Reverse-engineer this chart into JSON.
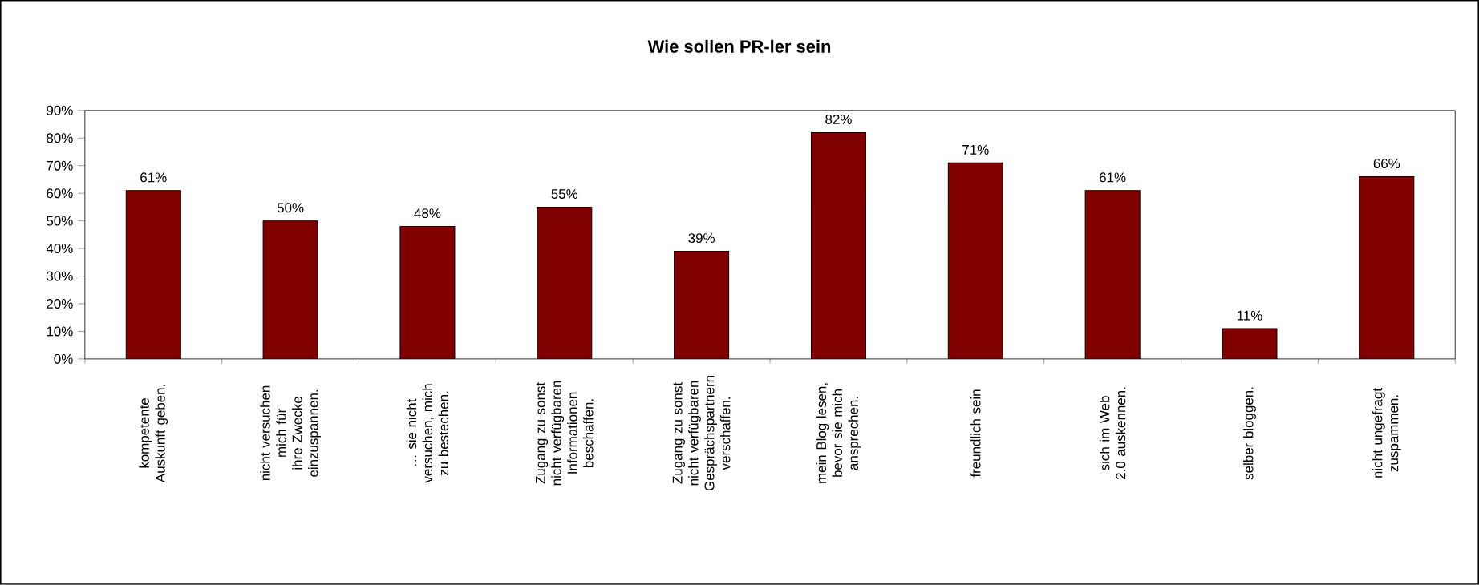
{
  "chart_data": {
    "type": "bar",
    "title": "Wie sollen PR-ler sein",
    "categories": [
      "kompetente Auskunft geben.",
      "nicht versuchen mich für ihre Zwecke einzuspannen.",
      "… sie nicht versuchen, mich zu bestechen.",
      "Zugang zu sonst nicht verfügbaren Informationen beschaffen.",
      "Zugang zu sonst nicht verfügbaren Gesprächspartnern verschaffen.",
      "mein Blog lesen, bevor sie mich ansprechen.",
      "freundlich sein",
      "sich im Web 2.0 auskennen.",
      "selber bloggen.",
      "nicht ungefragt zuspammen."
    ],
    "values": [
      61,
      50,
      48,
      55,
      39,
      82,
      71,
      61,
      11,
      66
    ],
    "value_labels": [
      "61%",
      "50%",
      "48%",
      "55%",
      "39%",
      "82%",
      "71%",
      "61%",
      "11%",
      "66%"
    ],
    "color": "#800000",
    "ylim": [
      0,
      90
    ],
    "yticks": [
      {
        "value": 0,
        "label": "0%"
      },
      {
        "value": 10,
        "label": "10%"
      },
      {
        "value": 20,
        "label": "20%"
      },
      {
        "value": 30,
        "label": "30%"
      },
      {
        "value": 40,
        "label": "40%"
      },
      {
        "value": 50,
        "label": "50%"
      },
      {
        "value": 60,
        "label": "60%"
      },
      {
        "value": 70,
        "label": "70%"
      },
      {
        "value": 80,
        "label": "80%"
      },
      {
        "value": 90,
        "label": "90%"
      }
    ],
    "grid": false
  }
}
